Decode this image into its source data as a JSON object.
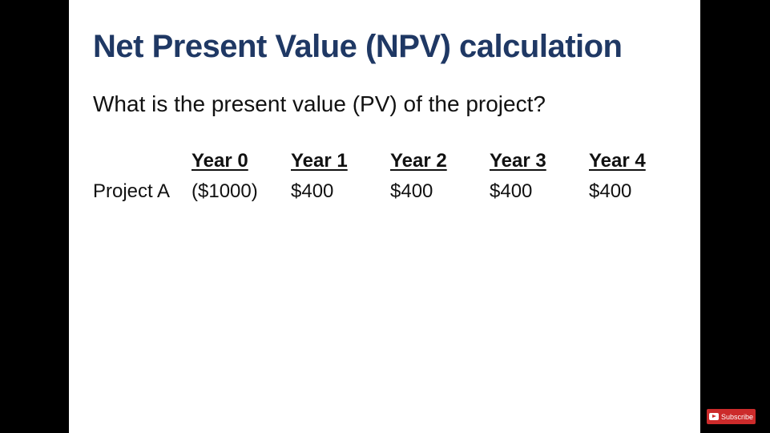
{
  "slide": {
    "title": "Net Present Value (NPV) calculation",
    "subtitle": "What is the present value (PV) of the project?",
    "table": {
      "headers": [
        "Year 0",
        "Year 1",
        "Year 2",
        "Year 3",
        "Year 4"
      ],
      "rows": [
        {
          "label": "Project A",
          "values": [
            "($1000)",
            "$400",
            "$400",
            "$400",
            "$400"
          ]
        }
      ]
    }
  },
  "overlay": {
    "subscribe_label": "Subscribe",
    "subscribe_icon": "youtube-play-icon",
    "subscribe_color": "#cc2b2b"
  },
  "colors": {
    "title": "#1f3864",
    "slide_background": "#ffffff",
    "letterbox": "#000000"
  }
}
